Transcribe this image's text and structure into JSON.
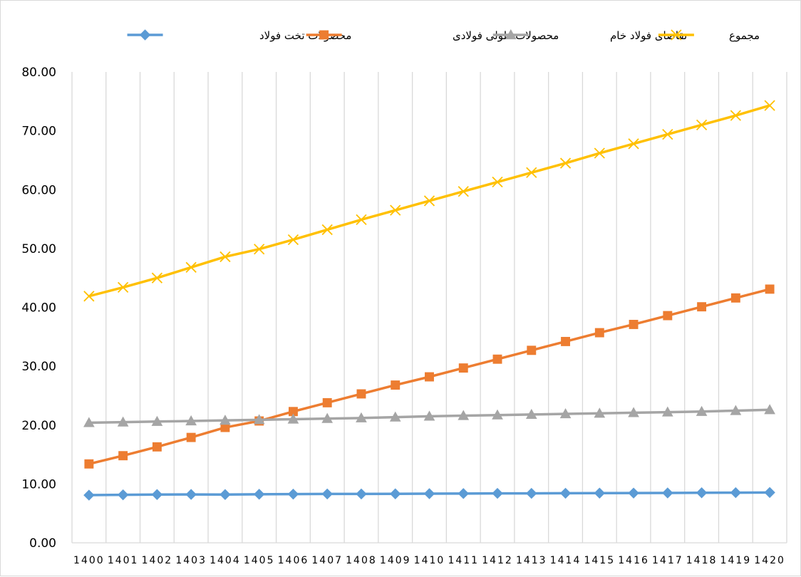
{
  "chart_data": {
    "type": "line",
    "title": "",
    "xlabel": "",
    "ylabel": "",
    "categories": [
      "1400",
      "1401",
      "1402",
      "1403",
      "1404",
      "1405",
      "1406",
      "1407",
      "1408",
      "1409",
      "1410",
      "1411",
      "1412",
      "1413",
      "1414",
      "1415",
      "1416",
      "1417",
      "1418",
      "1419",
      "1420"
    ],
    "ylim": [
      0,
      80
    ],
    "yticks": [
      "0.00",
      "10.00",
      "20.00",
      "30.00",
      "40.00",
      "50.00",
      "60.00",
      "70.00",
      "80.00"
    ],
    "grid": "vertical",
    "legend_position": "top",
    "series": [
      {
        "name": "محصولات تخت فولاد",
        "color": "#5B9BD5",
        "marker": "diamond",
        "values": [
          8.1,
          8.15,
          8.2,
          8.22,
          8.2,
          8.25,
          8.27,
          8.3,
          8.3,
          8.32,
          8.35,
          8.37,
          8.4,
          8.4,
          8.42,
          8.44,
          8.45,
          8.47,
          8.5,
          8.52,
          8.55
        ]
      },
      {
        "name": "محصولات طولی فولادی",
        "color": "#ED7D31",
        "marker": "square",
        "values": [
          13.4,
          14.8,
          16.3,
          17.9,
          19.6,
          20.7,
          22.3,
          23.8,
          25.3,
          26.8,
          28.2,
          29.7,
          31.2,
          32.7,
          34.2,
          35.7,
          37.1,
          38.6,
          40.1,
          41.6,
          43.1
        ]
      },
      {
        "name": "تقاضای فولاد خام",
        "color": "#A5A5A5",
        "marker": "triangle",
        "values": [
          20.4,
          20.5,
          20.6,
          20.7,
          20.8,
          20.9,
          21.0,
          21.1,
          21.2,
          21.35,
          21.5,
          21.6,
          21.7,
          21.8,
          21.9,
          22.0,
          22.1,
          22.2,
          22.3,
          22.45,
          22.6
        ]
      },
      {
        "name": "مجموع",
        "color": "#FFC000",
        "marker": "x",
        "values": [
          41.9,
          43.4,
          45.0,
          46.8,
          48.6,
          49.9,
          51.5,
          53.2,
          54.9,
          56.5,
          58.1,
          59.7,
          61.3,
          62.9,
          64.5,
          66.2,
          67.8,
          69.4,
          71.0,
          72.6,
          74.3
        ]
      }
    ]
  }
}
